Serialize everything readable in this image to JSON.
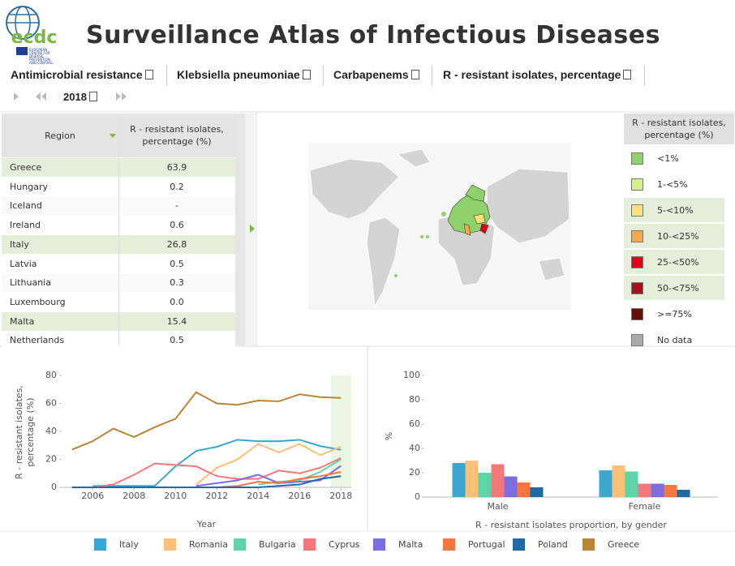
{
  "header": {
    "logo": "ecdc",
    "logo_subtitle": "EUROPEAN CENTRE FOR DISEASE PREVENTION AND CONTROL",
    "title": "Surveillance Atlas of Infectious Diseases"
  },
  "filters": [
    "Antimicrobial resistance",
    "Klebsiella pneumoniae",
    "Carbapenems",
    "R - resistant isolates, percentage"
  ],
  "time": {
    "year": "2018"
  },
  "table": {
    "columns": [
      "Region",
      "R - resistant isolates, percentage (%)"
    ],
    "rows": [
      [
        "Greece",
        "63.9"
      ],
      [
        "Hungary",
        "0.2"
      ],
      [
        "Iceland",
        "-"
      ],
      [
        "Ireland",
        "0.6"
      ],
      [
        "Italy",
        "26.8"
      ],
      [
        "Latvia",
        "0.5"
      ],
      [
        "Lithuania",
        "0.3"
      ],
      [
        "Luxembourg",
        "0.0"
      ],
      [
        "Malta",
        "15.4"
      ],
      [
        "Netherlands",
        "0.5"
      ]
    ],
    "highlighted_rows": [
      0,
      4,
      8
    ]
  },
  "map_legend": {
    "title": "R - resistant isolates, percentage (%)",
    "items": [
      {
        "label": "<1%",
        "color": "#8fd16a"
      },
      {
        "label": "1-<5%",
        "color": "#d6ef8e"
      },
      {
        "label": "5-<10%",
        "color": "#ffe07c"
      },
      {
        "label": "10-<25%",
        "color": "#f6a94c"
      },
      {
        "label": "25-<50%",
        "color": "#e2001a"
      },
      {
        "label": "50-<75%",
        "color": "#a5121d"
      },
      {
        "label": ">=75%",
        "color": "#6a0c0c"
      },
      {
        "label": "No data",
        "color": "#aaaaaa"
      }
    ],
    "highlighted": [
      2,
      3,
      4,
      5
    ]
  },
  "chart_data": [
    {
      "type": "line",
      "x": [
        2005,
        2006,
        2007,
        2008,
        2009,
        2010,
        2011,
        2012,
        2013,
        2014,
        2015,
        2016,
        2017,
        2018
      ],
      "xlim": [
        2004.5,
        2018.5
      ],
      "xticks": [
        2006,
        2008,
        2010,
        2012,
        2014,
        2016,
        2018
      ],
      "ylim": [
        0,
        80
      ],
      "yticks": [
        0,
        20,
        40,
        60,
        80
      ],
      "xlabel": "Year",
      "ylabel": "R - resistant isolates, percentage (%)",
      "series": [
        {
          "name": "Italy",
          "color": "#3ba7d0",
          "values": [
            null,
            1,
            1,
            1,
            1,
            15,
            26,
            29,
            34,
            33,
            33,
            34,
            29.5,
            26.8
          ]
        },
        {
          "name": "Romania",
          "color": "#fbbf76",
          "values": [
            null,
            null,
            null,
            null,
            null,
            null,
            2,
            14,
            20,
            31,
            25,
            31,
            23,
            29
          ]
        },
        {
          "name": "Bulgaria",
          "color": "#5dd3a8",
          "values": [
            null,
            null,
            null,
            null,
            null,
            null,
            null,
            null,
            null,
            2,
            4,
            5,
            11,
            20
          ]
        },
        {
          "name": "Cyprus",
          "color": "#f5797c",
          "values": [
            null,
            0,
            2,
            9,
            17,
            16,
            15,
            8,
            6,
            6,
            12,
            10,
            14,
            21
          ]
        },
        {
          "name": "Malta",
          "color": "#7b6fe0",
          "values": [
            null,
            null,
            null,
            null,
            null,
            null,
            1,
            3,
            5,
            9,
            3,
            4,
            5,
            15.4
          ]
        },
        {
          "name": "Portugal",
          "color": "#f7763f",
          "values": [
            null,
            null,
            0,
            0,
            0,
            0,
            0,
            0,
            1,
            4,
            3,
            6,
            8,
            11
          ]
        },
        {
          "name": "Poland",
          "color": "#1f6aa5",
          "values": [
            0,
            0,
            0,
            0,
            0,
            0,
            0,
            0,
            0,
            0,
            1,
            2,
            6,
            8
          ]
        },
        {
          "name": "Greece",
          "color": "#b8863b",
          "values": [
            27,
            33,
            42,
            36,
            43,
            49,
            68,
            60,
            59,
            62,
            61.5,
            66.5,
            64.5,
            63.9
          ]
        }
      ]
    },
    {
      "type": "bar",
      "categories": [
        "Male",
        "Female"
      ],
      "ylim": [
        0,
        100
      ],
      "yticks": [
        0,
        20,
        40,
        60,
        80,
        100
      ],
      "xlabel": "R - resistant isolates proportion, by gender",
      "ylabel": "%",
      "series": [
        {
          "name": "Italy",
          "color": "#3ba7d0",
          "values": [
            28,
            22
          ]
        },
        {
          "name": "Romania",
          "color": "#fbbf76",
          "values": [
            30,
            26
          ]
        },
        {
          "name": "Bulgaria",
          "color": "#5dd3a8",
          "values": [
            20,
            21
          ]
        },
        {
          "name": "Cyprus",
          "color": "#f5797c",
          "values": [
            27,
            11
          ]
        },
        {
          "name": "Malta",
          "color": "#7b6fe0",
          "values": [
            17,
            11
          ]
        },
        {
          "name": "Portugal",
          "color": "#f7763f",
          "values": [
            12,
            10
          ]
        },
        {
          "name": "Poland",
          "color": "#1f6aa5",
          "values": [
            8,
            6
          ]
        }
      ]
    }
  ]
}
